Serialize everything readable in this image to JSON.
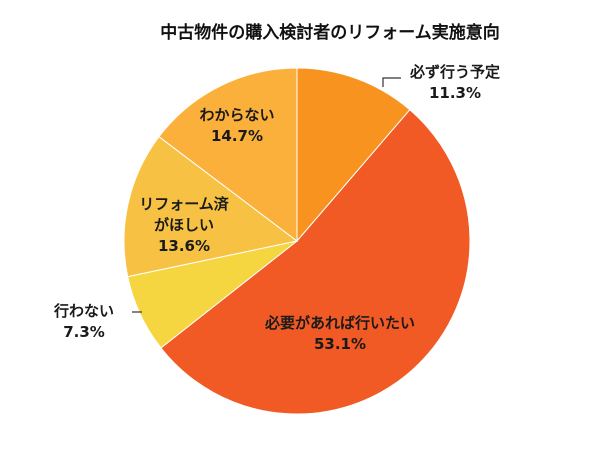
{
  "chart_data": {
    "type": "pie",
    "title": "中古物件の購入検討者のリフォーム実施意向",
    "start_angle_deg": 0,
    "direction": "clockwise",
    "slices": [
      {
        "label": "必ず行う予定",
        "value": 11.3,
        "value_text": "11.3%",
        "color": "#F7931E"
      },
      {
        "label": "必要があれば行いたい",
        "value": 53.1,
        "value_text": "53.1%",
        "color": "#F15A24"
      },
      {
        "label": "行わない",
        "value": 7.3,
        "value_text": "7.3%",
        "color": "#F5D640"
      },
      {
        "label": "リフォーム済がほしい",
        "label_lines": [
          "リフォーム済",
          "がほしい"
        ],
        "value": 13.6,
        "value_text": "13.6%",
        "color": "#F7C244"
      },
      {
        "label": "わからない",
        "value": 14.7,
        "value_text": "14.7%",
        "color": "#FBB03B"
      }
    ]
  }
}
